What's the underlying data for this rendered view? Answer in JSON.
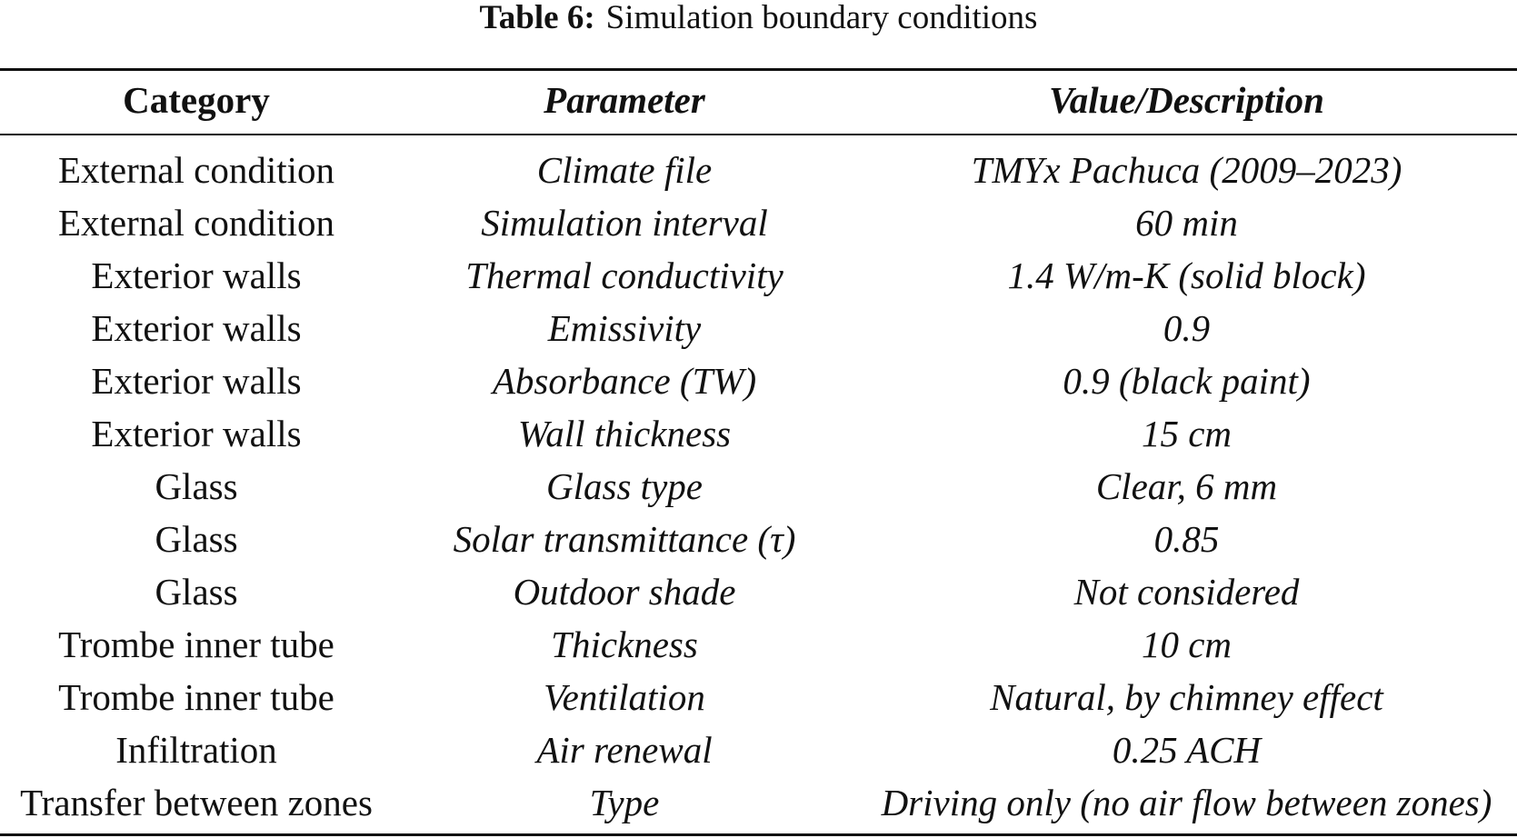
{
  "caption": {
    "label": "Table 6:",
    "title": "Simulation boundary conditions"
  },
  "table": {
    "headers": [
      "Category",
      "Parameter",
      "Value/Description"
    ],
    "rows": [
      [
        "External condition",
        "Climate file",
        "TMYx Pachuca (2009–2023)"
      ],
      [
        "External condition",
        "Simulation interval",
        "60 min"
      ],
      [
        "Exterior walls",
        "Thermal conductivity",
        "1.4 W/m-K (solid block)"
      ],
      [
        "Exterior walls",
        "Emissivity",
        "0.9"
      ],
      [
        "Exterior walls",
        "Absorbance (TW)",
        "0.9 (black paint)"
      ],
      [
        "Exterior walls",
        "Wall thickness",
        "15 cm"
      ],
      [
        "Glass",
        "Glass type",
        "Clear, 6 mm"
      ],
      [
        "Glass",
        "Solar transmittance (τ)",
        "0.85"
      ],
      [
        "Glass",
        "Outdoor shade",
        "Not considered"
      ],
      [
        "Trombe inner tube",
        "Thickness",
        "10 cm"
      ],
      [
        "Trombe inner tube",
        "Ventilation",
        "Natural, by chimney effect"
      ],
      [
        "Infiltration",
        "Air renewal",
        "0.25 ACH"
      ],
      [
        "Transfer between zones",
        "Type",
        "Driving only (no air flow between zones)"
      ]
    ]
  }
}
